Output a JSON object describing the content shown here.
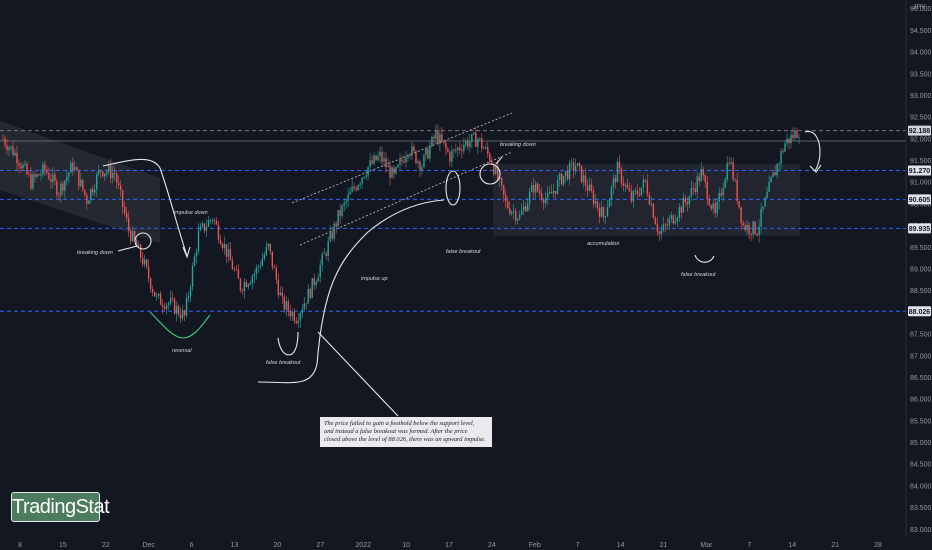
{
  "chart_data": {
    "type": "candlestick",
    "instrument_label": "JPY",
    "y_axis": {
      "min": 82.8,
      "max": 95.2,
      "ticks": [
        "95.000",
        "94.500",
        "94.000",
        "93.500",
        "93.000",
        "92.500",
        "92.000",
        "91.500",
        "91.000",
        "90.500",
        "90.000",
        "89.500",
        "89.000",
        "88.500",
        "88.000",
        "87.500",
        "87.000",
        "86.500",
        "86.000",
        "85.500",
        "85.000",
        "84.500",
        "84.000",
        "83.500",
        "83.000"
      ]
    },
    "x_axis": {
      "ticks": [
        "8",
        "15",
        "22",
        "Dec",
        "6",
        "13",
        "20",
        "27",
        "2022",
        "10",
        "17",
        "24",
        "Feb",
        "7",
        "14",
        "21",
        "Mar",
        "7",
        "14",
        "21",
        "28"
      ]
    },
    "price_levels": [
      {
        "name": "top-resistance",
        "value": 92.188,
        "label": "92.188",
        "style": "dashed",
        "color": "#7b6f88",
        "badge": true
      },
      {
        "name": "current-price",
        "value": 91.95,
        "label": "",
        "style": "solid",
        "color": "#787b86",
        "badge": false
      },
      {
        "name": "range-high",
        "value": 91.27,
        "label": "91.270",
        "style": "dashed",
        "color": "#2962ff",
        "badge": true
      },
      {
        "name": "range-mid",
        "value": 90.605,
        "label": "90.605",
        "style": "dashed",
        "color": "#2962ff",
        "badge": true
      },
      {
        "name": "range-low",
        "value": 89.935,
        "label": "89.935",
        "style": "dashed",
        "color": "#2962ff",
        "badge": true
      },
      {
        "name": "support",
        "value": 88.026,
        "label": "88.026",
        "style": "dashed",
        "color": "#2962ff",
        "badge": true
      }
    ],
    "candles_bull_color": "#26a69a",
    "candles_bear_color": "#ef5350",
    "anchor_prices": [
      92.0,
      91.6,
      91.0,
      91.3,
      90.8,
      91.4,
      90.6,
      91.3,
      91.2,
      89.9,
      89.2,
      88.3,
      88.2,
      87.9,
      89.8,
      90.2,
      89.4,
      88.6,
      88.9,
      89.5,
      88.2,
      87.9,
      88.5,
      89.3,
      90.2,
      90.8,
      91.3,
      91.6,
      91.1,
      91.8,
      91.4,
      92.1,
      91.6,
      91.9,
      92.0,
      91.5,
      90.5,
      90.2,
      90.9,
      90.6,
      91.1,
      91.4,
      90.8,
      90.2,
      91.3,
      90.6,
      91.0,
      89.8,
      90.2,
      90.6,
      91.2,
      90.2,
      91.6,
      90.0,
      89.9,
      91.0,
      91.9,
      92.2
    ],
    "annotations": [
      {
        "name": "breaking-down-left",
        "text": "breaking down"
      },
      {
        "name": "impulse-down",
        "text": "impulse down"
      },
      {
        "name": "reversal",
        "text": "reversal"
      },
      {
        "name": "false-breakout-1",
        "text": "false breakout"
      },
      {
        "name": "impulse-up",
        "text": "impulse up"
      },
      {
        "name": "false-breakout-2",
        "text": "false breakout"
      },
      {
        "name": "breaking-down-right",
        "text": "breaking down"
      },
      {
        "name": "accumulation",
        "text": "accumulation"
      },
      {
        "name": "false-breakout-3",
        "text": "false breakout"
      }
    ],
    "note_lines": [
      "The price failed to gain a foothold below the support level,",
      "and instead a false breakout was formed. After the price",
      "closed above the level of 88.026, there was an upward impulse."
    ],
    "grid": false
  },
  "branding": {
    "logo_text": "TradingStat"
  }
}
